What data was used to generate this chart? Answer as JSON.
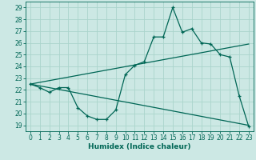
{
  "title": "",
  "xlabel": "Humidex (Indice chaleur)",
  "background_color": "#cce8e4",
  "line_color": "#006655",
  "grid_color": "#aad4cc",
  "xlim": [
    -0.5,
    23.5
  ],
  "ylim": [
    18.5,
    29.5
  ],
  "xticks": [
    0,
    1,
    2,
    3,
    4,
    5,
    6,
    7,
    8,
    9,
    10,
    11,
    12,
    13,
    14,
    15,
    16,
    17,
    18,
    19,
    20,
    21,
    22,
    23
  ],
  "yticks": [
    19,
    20,
    21,
    22,
    23,
    24,
    25,
    26,
    27,
    28,
    29
  ],
  "curve1_x": [
    0,
    1,
    2,
    3,
    4,
    5,
    6,
    7,
    8,
    9,
    10,
    11,
    12,
    13,
    14,
    15,
    16,
    17,
    18,
    19,
    20,
    21,
    22,
    23
  ],
  "curve1_y": [
    22.5,
    22.2,
    21.8,
    22.2,
    22.2,
    20.5,
    19.8,
    19.5,
    19.5,
    20.3,
    23.3,
    24.1,
    24.4,
    26.5,
    26.5,
    29.0,
    26.9,
    27.2,
    26.0,
    25.9,
    25.0,
    24.8,
    21.5,
    18.9
  ],
  "curve2_x": [
    0,
    23
  ],
  "curve2_y": [
    22.5,
    25.9
  ],
  "curve3_x": [
    0,
    23
  ],
  "curve3_y": [
    22.5,
    19.0
  ],
  "xlabel_fontsize": 6.5,
  "tick_fontsize": 5.5
}
